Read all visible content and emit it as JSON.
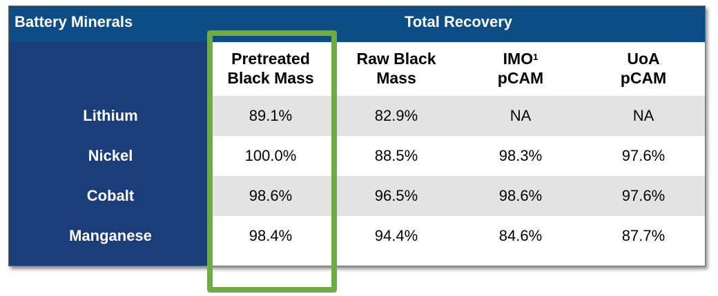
{
  "header": {
    "left_title": "Battery Minerals",
    "right_title": "Total Recovery"
  },
  "columns": [
    {
      "line1": "Pretreated",
      "line2": "Black Mass",
      "sup": ""
    },
    {
      "line1": "Raw Black",
      "line2": "Mass",
      "sup": ""
    },
    {
      "line1": "IMO",
      "line2": "pCAM",
      "sup": "1"
    },
    {
      "line1": "UoA",
      "line2": "pCAM",
      "sup": ""
    }
  ],
  "rows": [
    {
      "label": "Lithium",
      "values": [
        "89.1%",
        "82.9%",
        "NA",
        "NA"
      ]
    },
    {
      "label": "Nickel",
      "values": [
        "100.0%",
        "88.5%",
        "98.3%",
        "97.6%"
      ]
    },
    {
      "label": "Cobalt",
      "values": [
        "98.6%",
        "96.5%",
        "98.6%",
        "97.6%"
      ]
    },
    {
      "label": "Manganese",
      "values": [
        "98.4%",
        "94.4%",
        "84.6%",
        "87.7%"
      ]
    }
  ],
  "colors": {
    "header_blue": "#0b4d84",
    "label_blue": "#1b3d79",
    "row_shade": "#e3e3e3",
    "highlight_green": "#6fac46"
  }
}
